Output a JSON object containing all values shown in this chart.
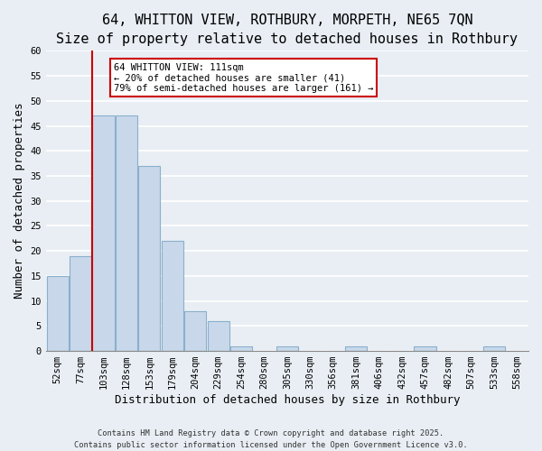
{
  "title": "64, WHITTON VIEW, ROTHBURY, MORPETH, NE65 7QN",
  "subtitle": "Size of property relative to detached houses in Rothbury",
  "xlabel": "Distribution of detached houses by size in Rothbury",
  "ylabel": "Number of detached properties",
  "bar_labels": [
    "52sqm",
    "77sqm",
    "103sqm",
    "128sqm",
    "153sqm",
    "179sqm",
    "204sqm",
    "229sqm",
    "254sqm",
    "280sqm",
    "305sqm",
    "330sqm",
    "356sqm",
    "381sqm",
    "406sqm",
    "432sqm",
    "457sqm",
    "482sqm",
    "507sqm",
    "533sqm",
    "558sqm"
  ],
  "bar_values": [
    15,
    19,
    47,
    47,
    37,
    22,
    8,
    6,
    1,
    0,
    1,
    0,
    0,
    1,
    0,
    0,
    1,
    0,
    0,
    1,
    0
  ],
  "bar_color": "#c8d8ea",
  "bar_edge_color": "#8ab0cc",
  "ylim": [
    0,
    60
  ],
  "yticks": [
    0,
    5,
    10,
    15,
    20,
    25,
    30,
    35,
    40,
    45,
    50,
    55,
    60
  ],
  "vline_color": "#cc0000",
  "annotation_title": "64 WHITTON VIEW: 111sqm",
  "annotation_line1": "← 20% of detached houses are smaller (41)",
  "annotation_line2": "79% of semi-detached houses are larger (161) →",
  "annotation_box_color": "#ffffff",
  "annotation_box_edge": "#cc0000",
  "footer1": "Contains HM Land Registry data © Crown copyright and database right 2025.",
  "footer2": "Contains public sector information licensed under the Open Government Licence v3.0.",
  "background_color": "#e8eef4",
  "grid_color": "#ffffff",
  "title_fontsize": 11,
  "subtitle_fontsize": 9.5,
  "tick_fontsize": 7.5,
  "axis_label_fontsize": 9
}
